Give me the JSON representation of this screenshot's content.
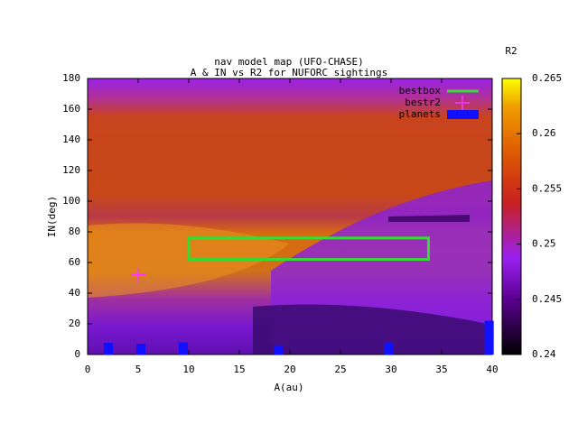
{
  "chart_data": {
    "type": "heatmap",
    "title": "nav model map (UFO-CHASE)",
    "subtitle": "A & IN vs R2 for NUFORC sightings",
    "xlabel": "A(au)",
    "ylabel": "IN(deg)",
    "xlim": [
      0,
      40
    ],
    "ylim": [
      0,
      180
    ],
    "xticks": [
      0,
      5,
      10,
      15,
      20,
      25,
      30,
      35,
      40
    ],
    "yticks": [
      0,
      20,
      40,
      60,
      80,
      100,
      120,
      140,
      160,
      180
    ],
    "colorbar": {
      "label": "R2",
      "lim": [
        0.24,
        0.265
      ],
      "ticks": [
        0.24,
        0.245,
        0.25,
        0.255,
        0.26,
        0.265
      ]
    },
    "legend": "top right",
    "series": [
      {
        "name": "bestbox",
        "kind": "box",
        "color": "#33dd33",
        "x": [
          10,
          33.7
        ],
        "y": [
          62,
          76
        ]
      },
      {
        "name": "bestr2",
        "kind": "point",
        "color": "#ff33ff",
        "x": [
          5
        ],
        "y": [
          52
        ]
      },
      {
        "name": "planets",
        "kind": "bar",
        "color": "#1010ff",
        "x": [
          2.05,
          5.27,
          9.46,
          18.9,
          29.8,
          39.7
        ],
        "values": [
          7.6,
          7,
          8,
          6,
          7.6,
          22
        ]
      }
    ]
  }
}
